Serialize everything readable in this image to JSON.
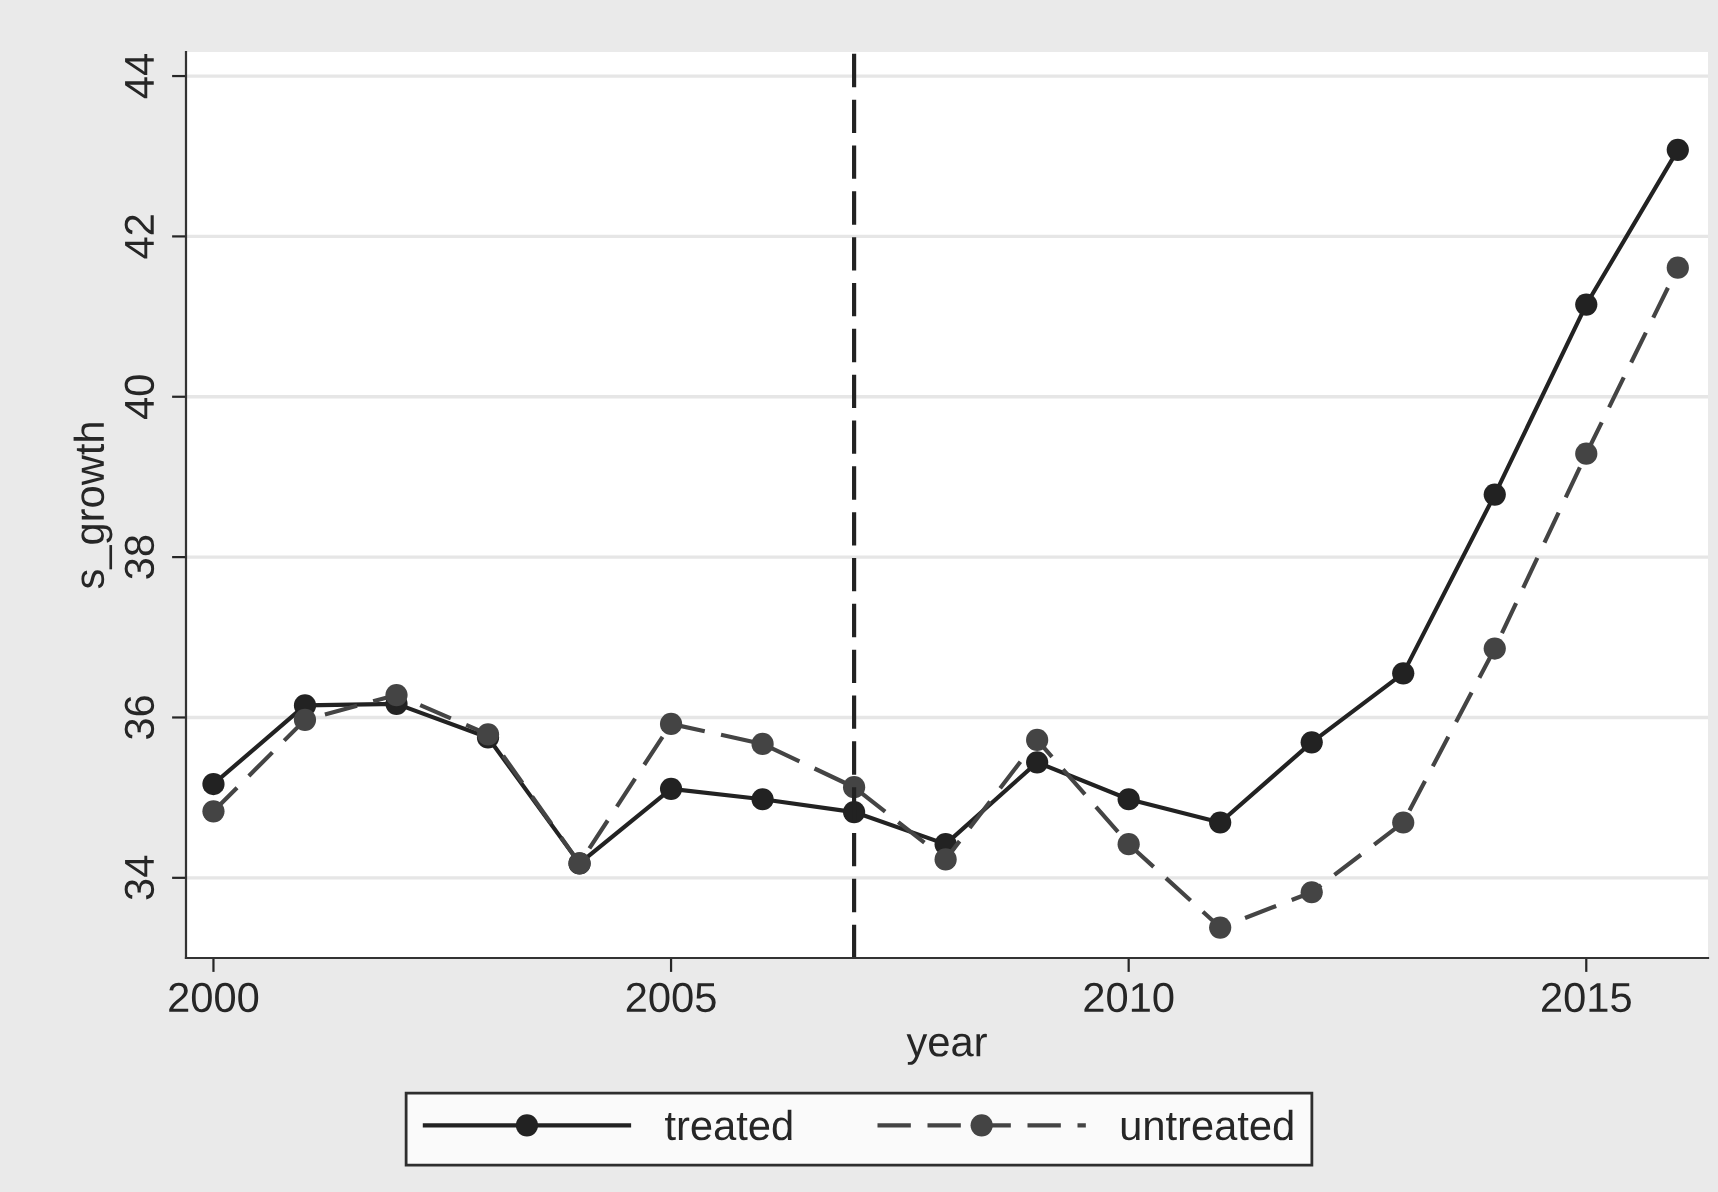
{
  "chart_data": {
    "type": "line",
    "xlabel": "year",
    "ylabel": "s_growth",
    "x": [
      2000,
      2001,
      2002,
      2003,
      2004,
      2005,
      2006,
      2007,
      2008,
      2009,
      2010,
      2011,
      2012,
      2013,
      2014,
      2015,
      2016
    ],
    "series": [
      {
        "name": "treated",
        "color": "#222222",
        "line_style": "solid",
        "values": [
          35.17,
          36.15,
          36.17,
          35.75,
          34.18,
          35.11,
          34.98,
          34.82,
          34.42,
          35.44,
          34.98,
          34.69,
          35.69,
          36.55,
          38.78,
          41.15,
          43.08
        ]
      },
      {
        "name": "untreated",
        "color": "#444444",
        "line_style": "dashed",
        "values": [
          34.83,
          35.97,
          36.28,
          35.79,
          34.18,
          35.92,
          35.67,
          35.13,
          34.23,
          35.72,
          34.42,
          33.38,
          33.82,
          34.69,
          36.86,
          39.29,
          41.61
        ]
      }
    ],
    "marker": "circle",
    "xlim": [
      1999.7,
      2016.33
    ],
    "xticks": [
      2000,
      2005,
      2010,
      2015
    ],
    "ylim": [
      33.0,
      44.3
    ],
    "yticks": [
      34,
      36,
      38,
      40,
      42,
      44
    ],
    "grid": "y",
    "legend": "bottom",
    "ref_lines": [
      {
        "axis": "x",
        "value": 2007,
        "color": "#222222",
        "line_style": "dashed"
      }
    ]
  }
}
